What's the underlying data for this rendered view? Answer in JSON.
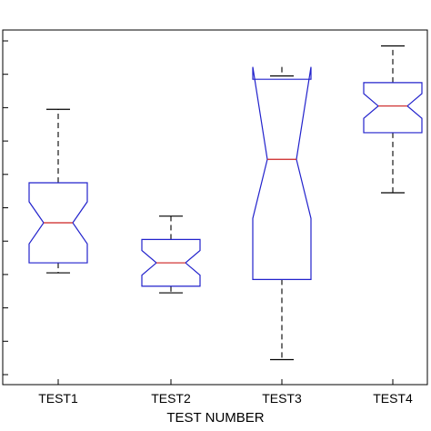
{
  "chart_data": {
    "type": "boxplot",
    "notched": true,
    "xlabel": "TEST NUMBER",
    "ylabel": "",
    "title": "",
    "categories": [
      "TEST1",
      "TEST2",
      "TEST3",
      "TEST4"
    ],
    "ylim": [
      0,
      1
    ],
    "y_tick_count": 11,
    "y_tick_labels_visible": false,
    "grid": false,
    "boxes": [
      {
        "name": "TEST1",
        "whisker_low": 0.305,
        "q1": 0.335,
        "median": 0.455,
        "q3": 0.575,
        "whisker_high": 0.795,
        "notch_low": 0.392,
        "notch_high": 0.518
      },
      {
        "name": "TEST2",
        "whisker_low": 0.245,
        "q1": 0.265,
        "median": 0.335,
        "q3": 0.405,
        "whisker_high": 0.475,
        "notch_low": 0.298,
        "notch_high": 0.372
      },
      {
        "name": "TEST3",
        "whisker_low": 0.045,
        "q1": 0.285,
        "median": 0.645,
        "q3": 0.885,
        "whisker_high": 0.895,
        "notch_low": 0.468,
        "notch_high": 0.922
      },
      {
        "name": "TEST4",
        "whisker_low": 0.545,
        "q1": 0.725,
        "median": 0.805,
        "q3": 0.875,
        "whisker_high": 0.985,
        "notch_low": 0.768,
        "notch_high": 0.842
      }
    ],
    "colors": {
      "box": "#2222cc",
      "median": "#cc2222",
      "whisker": "#000000"
    }
  }
}
